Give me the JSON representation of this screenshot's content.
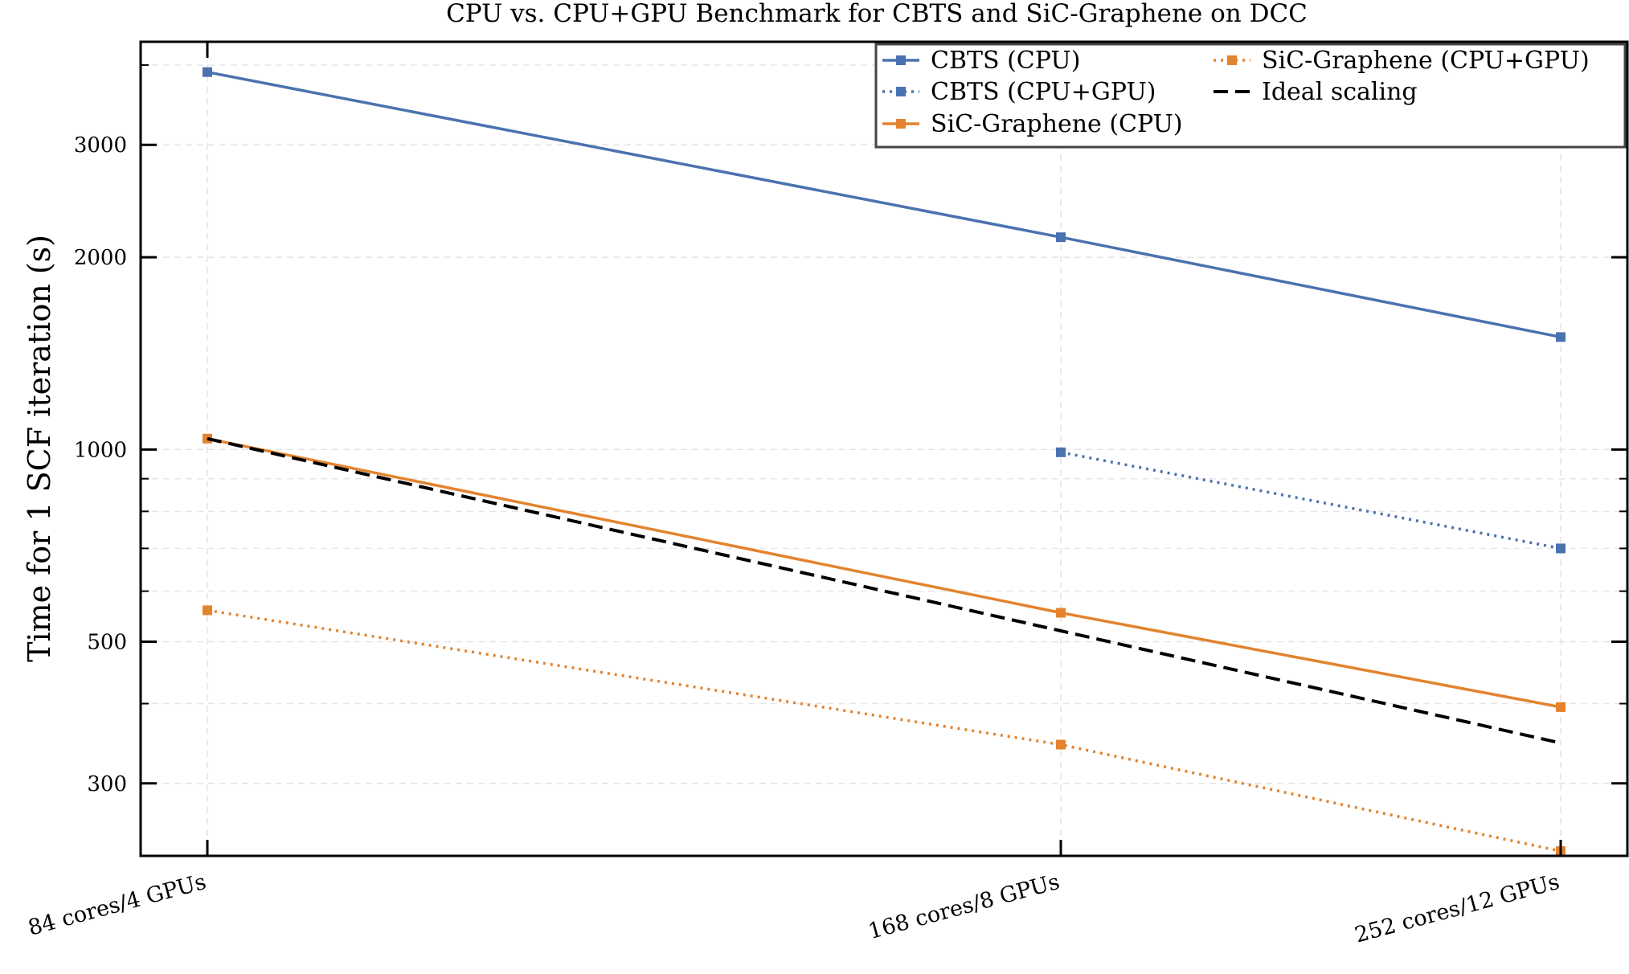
{
  "chart_data": {
    "type": "line",
    "title": "CPU vs. CPU+GPU Benchmark for CBTS and SiC-Graphene on DCC",
    "xlabel": "",
    "ylabel": "Time for 1 SCF iteration (s)",
    "y_scale": "log",
    "ylim": [
      231,
      4350
    ],
    "grid": true,
    "legend_position": "top-right",
    "categories": [
      "84 cores/4 GPUs",
      "168 cores/8 GPUs",
      "252 cores/12 GPUs"
    ],
    "y_ticks": [
      300,
      500,
      1000,
      2000,
      3000
    ],
    "y_tick_labels": [
      "300",
      "500",
      "1000",
      "2000",
      "3000"
    ],
    "series": [
      {
        "name": "CBTS (CPU)",
        "values": [
          3900,
          2150,
          1500
        ],
        "color": "#4a72b0",
        "dash": "solid",
        "marker": "square"
      },
      {
        "name": "CBTS (CPU+GPU)",
        "values": [
          null,
          990,
          700
        ],
        "color": "#4a72b0",
        "dash": "dotted",
        "marker": "square"
      },
      {
        "name": "SiC-Graphene (CPU)",
        "values": [
          1040,
          555,
          395
        ],
        "color": "#e3832f",
        "dash": "solid",
        "marker": "square"
      },
      {
        "name": "SiC-Graphene (CPU+GPU)",
        "values": [
          560,
          345,
          235
        ],
        "color": "#e3832f",
        "dash": "dotted",
        "marker": "square"
      },
      {
        "name": "Ideal scaling",
        "values": [
          1040,
          520,
          347
        ],
        "color": "#000000",
        "dash": "dashed",
        "marker": "none"
      }
    ]
  }
}
